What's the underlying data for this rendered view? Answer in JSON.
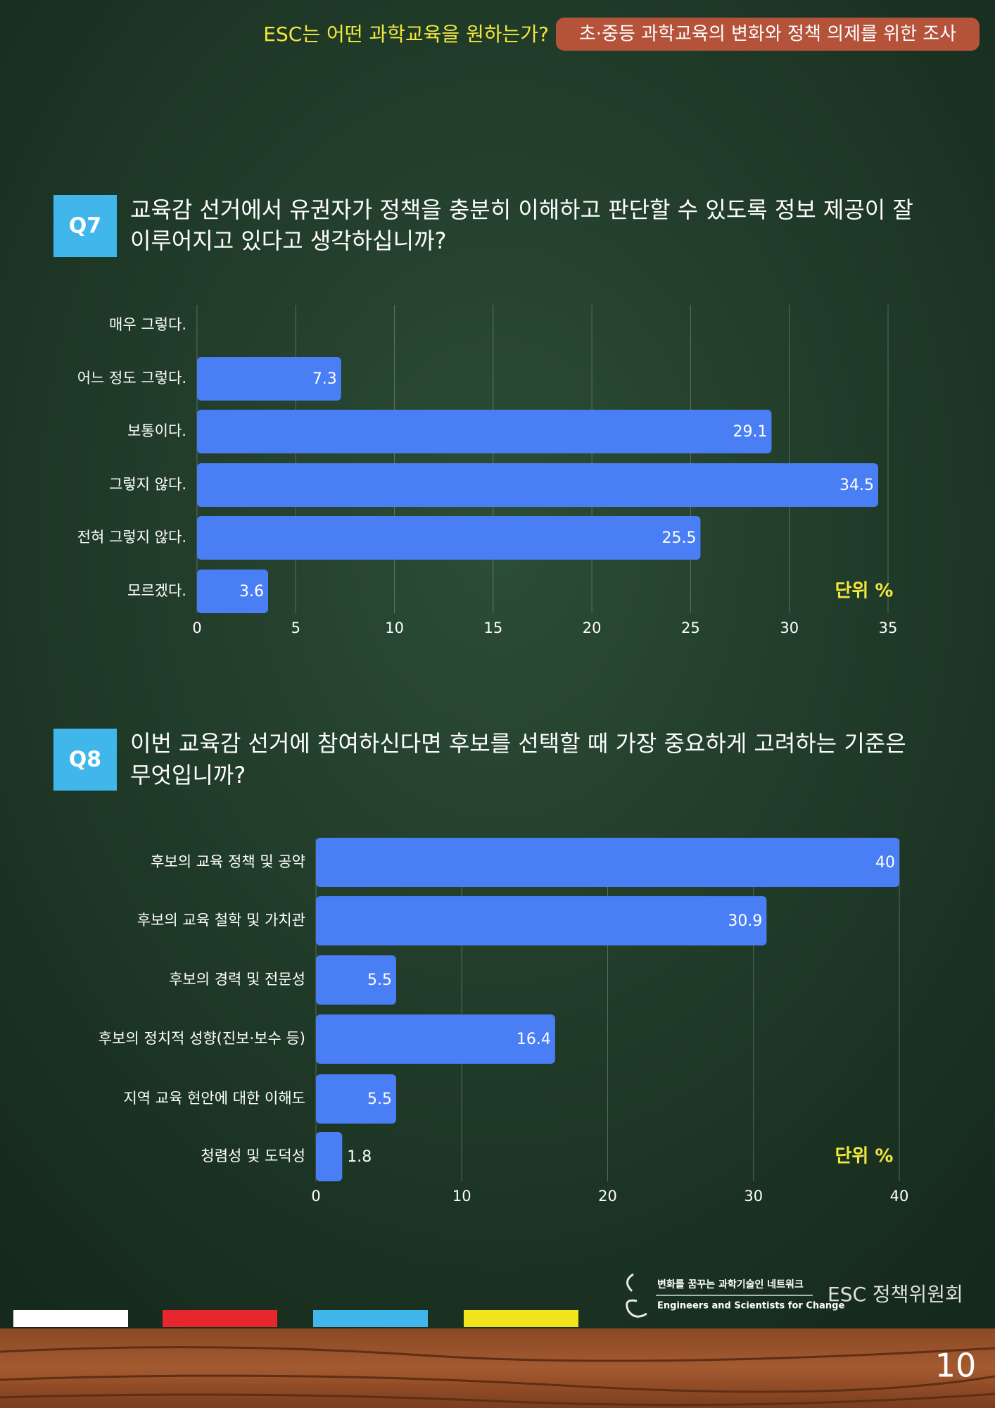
{
  "header": {
    "title": "ESC는 어떤 과학교육을 원하는가?",
    "badge": "초·중등 과학교육의 변화와 정책 의제를 위한 조사"
  },
  "chart_data": [
    {
      "type": "bar",
      "orientation": "horizontal",
      "question_label": "Q7",
      "title": [
        "교육감 선거에서 유권자가 정책을 충분히 이해하고 판단할 수 있도록 정보 제공이 잘",
        "이루어지고 있다고 생각하십니까?"
      ],
      "categories": [
        "매우 그렇다.",
        "어느 정도 그렇다.",
        "보통이다.",
        "그렇지 않다.",
        "전혀 그렇지 않다.",
        "모르겠다."
      ],
      "values": [
        0,
        7.3,
        29.1,
        34.5,
        25.5,
        3.6
      ],
      "color": "#4a7ef5",
      "xlim": [
        0,
        35
      ],
      "xticks": [
        0,
        5,
        10,
        15,
        20,
        25,
        30,
        35
      ],
      "grid": true,
      "unit_label": "단위 %"
    },
    {
      "type": "bar",
      "orientation": "horizontal",
      "question_label": "Q8",
      "title": [
        "이번 교육감 선거에 참여하신다면 후보를 선택할 때 가장 중요하게 고려하는 기준은",
        "무엇입니까?"
      ],
      "categories": [
        "후보의 교육 정책 및 공약",
        "후보의 교육 철학 및 가치관",
        "후보의 경력 및 전문성",
        "후보의 정치적 성향(진보·보수 등)",
        "지역 교육 현안에 대한 이해도",
        "청렴성 및 도덕성"
      ],
      "values": [
        40,
        30.9,
        5.5,
        16.4,
        5.5,
        1.8
      ],
      "color": "#4a7ef5",
      "xlim": [
        0,
        40
      ],
      "xticks": [
        0,
        10,
        20,
        30,
        40
      ],
      "grid": true,
      "unit_label": "단위 %"
    }
  ],
  "footer": {
    "logo_korean": "변화를 꿈꾸는 과학기술인 네트워크",
    "logo_english": "Engineers and Scientists for Change",
    "organization": "ESC 정책위원회",
    "page_number": "10"
  }
}
